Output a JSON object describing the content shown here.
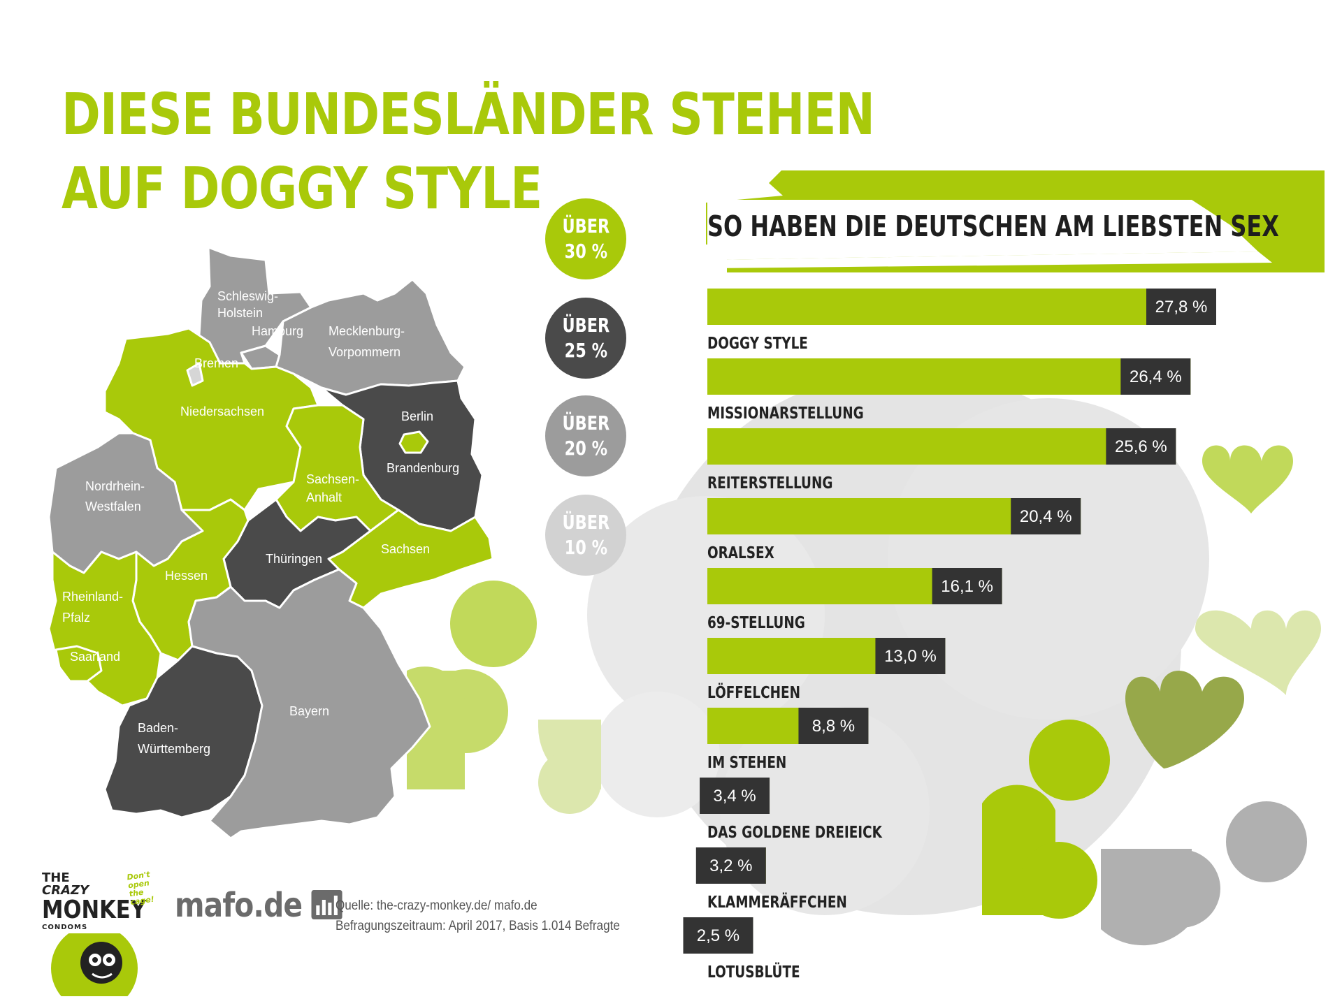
{
  "headline": {
    "line1": "DIESE BUNDESLÄNDER STEHEN",
    "line2": "AUF DOGGY STYLE"
  },
  "legend": [
    {
      "line1": "ÜBER",
      "line2": "30 %",
      "color": "#a9c90a"
    },
    {
      "line1": "ÜBER",
      "line2": "25 %",
      "color": "#4a4a4a"
    },
    {
      "line1": "ÜBER",
      "line2": "20 %",
      "color": "#9c9c9c"
    },
    {
      "line1": "ÜBER",
      "line2": "10 %",
      "color": "#d2d2d2"
    }
  ],
  "map": {
    "states": [
      {
        "name": "Schleswig-Holstein",
        "lines": [
          "Schleswig-",
          "Holstein"
        ],
        "category": "ÜBER 20 %"
      },
      {
        "name": "Hamburg",
        "lines": [
          "Hamburg"
        ],
        "category": "ÜBER 20 %"
      },
      {
        "name": "Mecklenburg-Vorpommern",
        "lines": [
          "Mecklenburg-",
          "Vorpommern"
        ],
        "category": "ÜBER 20 %"
      },
      {
        "name": "Bremen",
        "lines": [
          "Bremen"
        ],
        "category": "ÜBER 10 %"
      },
      {
        "name": "Niedersachsen",
        "lines": [
          "Niedersachsen"
        ],
        "category": "ÜBER 30 %"
      },
      {
        "name": "Berlin",
        "lines": [
          "Berlin"
        ],
        "category": "ÜBER 30 %"
      },
      {
        "name": "Brandenburg",
        "lines": [
          "Brandenburg"
        ],
        "category": "ÜBER 25 %"
      },
      {
        "name": "Nordrhein-Westfalen",
        "lines": [
          "Nordrhein-",
          "Westfalen"
        ],
        "category": "ÜBER 20 %"
      },
      {
        "name": "Sachsen-Anhalt",
        "lines": [
          "Sachsen-",
          "Anhalt"
        ],
        "category": "ÜBER 30 %"
      },
      {
        "name": "Sachsen",
        "lines": [
          "Sachsen"
        ],
        "category": "ÜBER 30 %"
      },
      {
        "name": "Thüringen",
        "lines": [
          "Thüringen"
        ],
        "category": "ÜBER 25 %"
      },
      {
        "name": "Hessen",
        "lines": [
          "Hessen"
        ],
        "category": "ÜBER 30 %"
      },
      {
        "name": "Rheinland-Pfalz",
        "lines": [
          "Rheinland-",
          "Pfalz"
        ],
        "category": "ÜBER 30 %"
      },
      {
        "name": "Saarland",
        "lines": [
          "Saarland"
        ],
        "category": "ÜBER 30 %"
      },
      {
        "name": "Baden-Württemberg",
        "lines": [
          "Baden-",
          "Württemberg"
        ],
        "category": "ÜBER 25 %"
      },
      {
        "name": "Bayern",
        "lines": [
          "Bayern"
        ],
        "category": "ÜBER 20 %"
      }
    ]
  },
  "chart_data": {
    "type": "bar",
    "orientation": "horizontal",
    "title": "SO HABEN DIE DEUTSCHEN AM LIEBSTEN SEX",
    "categories": [
      "DOGGY STYLE",
      "MISSIONARSTELLUNG",
      "REITERSTELLUNG",
      "ORALSEX",
      "69-STELLUNG",
      "LÖFFELCHEN",
      "IM STEHEN",
      "DAS GOLDENE DREIEICK",
      "KLAMMERÄFFCHEN",
      "LOTUSBLÜTE"
    ],
    "values": [
      27.8,
      26.4,
      25.6,
      20.4,
      16.1,
      13.0,
      8.8,
      3.4,
      3.2,
      2.5
    ],
    "value_labels": [
      "27,8 %",
      "26,4 %",
      "25,6 %",
      "20,4 %",
      "16,1 %",
      "13,0 %",
      "8,8 %",
      "3,4 %",
      "3,2 %",
      "2,5 %"
    ],
    "colors": {
      "bar": "#a9c90a",
      "value_box": "#333333",
      "value_text": "#ffffff"
    }
  },
  "brand": {
    "monkey_the": "THE",
    "monkey_crazy": "CRAZY",
    "monkey_big": "MONKEY",
    "monkey_small": "CONDOMS",
    "monkey_tag_1": "Don't open",
    "monkey_tag_2": "the cage!",
    "mafo": "mafo.de"
  },
  "source": {
    "line1": "Quelle: the-crazy-monkey.de/ mafo.de",
    "line2": "Befragungszeitraum: April 2017, Basis 1.014 Befragte"
  }
}
